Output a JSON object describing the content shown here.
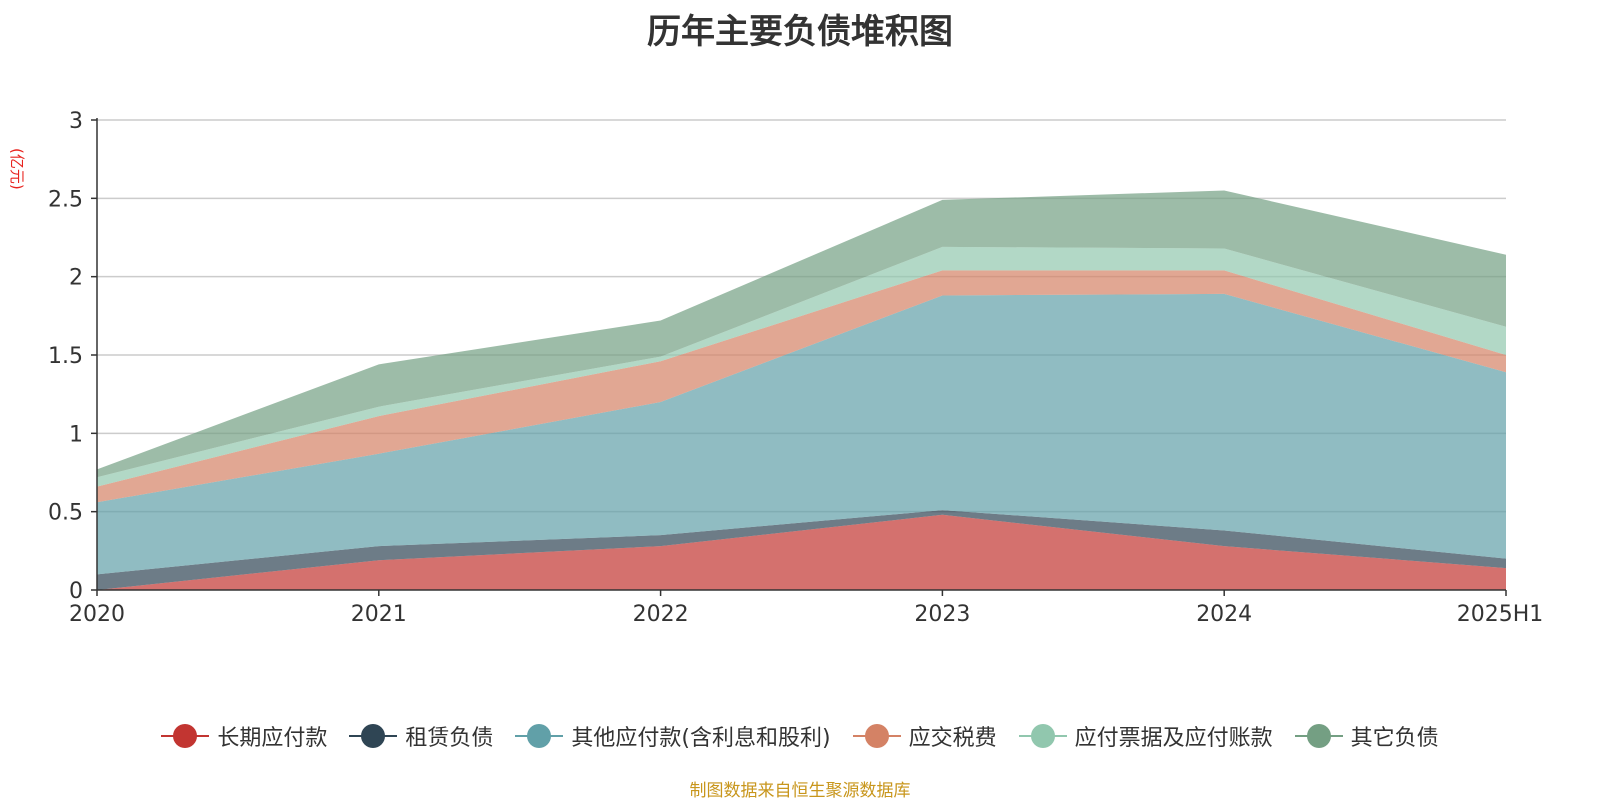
{
  "title": "历年主要负债堆积图",
  "unit_label": "(亿元)",
  "source": "制图数据来自恒生聚源数据库",
  "chart_data": {
    "type": "area",
    "stacked": true,
    "title": "历年主要负债堆积图",
    "ylabel": "(亿元)",
    "categories": [
      "2020",
      "2021",
      "2022",
      "2023",
      "2024",
      "2025H1"
    ],
    "ylim": [
      0,
      3
    ],
    "yticks": [
      "0",
      "0.5",
      "1",
      "1.5",
      "2",
      "2.5",
      "3"
    ],
    "grid": true,
    "legend_position": "bottom",
    "series": [
      {
        "name": "长期应付款",
        "color": "#c23531",
        "values": [
          0.0,
          0.19,
          0.28,
          0.48,
          0.28,
          0.14
        ]
      },
      {
        "name": "租赁负债",
        "color": "#2f4554",
        "values": [
          0.1,
          0.09,
          0.07,
          0.03,
          0.1,
          0.06
        ]
      },
      {
        "name": "其他应付款(含利息和股利)",
        "color": "#61a0a8",
        "values": [
          0.46,
          0.59,
          0.85,
          1.37,
          1.51,
          1.19
        ]
      },
      {
        "name": "应交税费",
        "color": "#d48265",
        "values": [
          0.1,
          0.24,
          0.26,
          0.16,
          0.15,
          0.11
        ]
      },
      {
        "name": "应付票据及应付账款",
        "color": "#91c7ae",
        "values": [
          0.06,
          0.06,
          0.03,
          0.15,
          0.14,
          0.18
        ]
      },
      {
        "name": "其它负债",
        "color": "#749f83",
        "values": [
          0.05,
          0.27,
          0.23,
          0.3,
          0.37,
          0.46
        ]
      }
    ]
  }
}
